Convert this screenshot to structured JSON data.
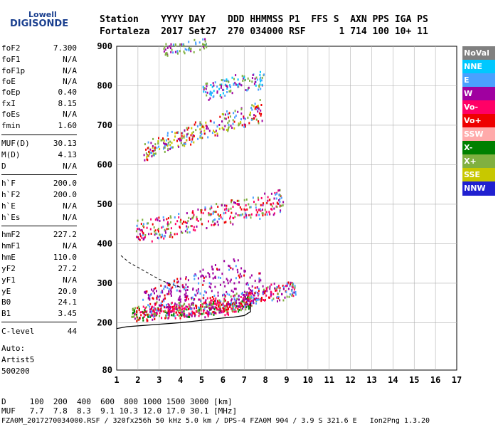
{
  "logo": {
    "line1": "Lowell",
    "line2": "DIGISONDE"
  },
  "header": {
    "row1": "Station    YYYY DAY    DDD HHMMSS P1  FFS S  AXN PPS IGA PS",
    "row2": "Fortaleza  2017 Set27  270 034000 RSF      1 714 100 10+ 11"
  },
  "params": [
    {
      "label": "foF2",
      "value": "7.300"
    },
    {
      "label": "foF1",
      "value": "N/A"
    },
    {
      "label": "foF1p",
      "value": "N/A"
    },
    {
      "label": "foE",
      "value": "N/A"
    },
    {
      "label": "foEp",
      "value": "0.40"
    },
    {
      "label": "fxI",
      "value": "8.15"
    },
    {
      "label": "foEs",
      "value": "N/A"
    },
    {
      "label": "fmin",
      "value": "1.60"
    },
    {
      "label": "MUF(D)",
      "value": "30.13"
    },
    {
      "label": "M(D)",
      "value": "4.13"
    },
    {
      "label": "D",
      "value": "N/A"
    },
    {
      "label": "h`F",
      "value": "200.0"
    },
    {
      "label": "h`F2",
      "value": "200.0"
    },
    {
      "label": "h`E",
      "value": "N/A"
    },
    {
      "label": "h`Es",
      "value": "N/A"
    },
    {
      "label": "hmF2",
      "value": "227.2"
    },
    {
      "label": "hmF1",
      "value": "N/A"
    },
    {
      "label": "hmE",
      "value": "110.0"
    },
    {
      "label": "yF2",
      "value": "27.2"
    },
    {
      "label": "yF1",
      "value": "N/A"
    },
    {
      "label": "yE",
      "value": "20.0"
    },
    {
      "label": "B0",
      "value": "24.1"
    },
    {
      "label": "B1",
      "value": "3.45"
    },
    {
      "label": "C-level",
      "value": "44"
    }
  ],
  "extra": {
    "auto": "Auto:",
    "artist": "Artist5",
    "version": "500200"
  },
  "legend": [
    {
      "label": "NoVal",
      "color": "#808080"
    },
    {
      "label": "NNE",
      "color": "#00c8ff"
    },
    {
      "label": "E",
      "color": "#4aa0ff"
    },
    {
      "label": "W",
      "color": "#a000a0"
    },
    {
      "label": "Vo-",
      "color": "#ff0066"
    },
    {
      "label": "Vo+",
      "color": "#ee0000"
    },
    {
      "label": "SSW",
      "color": "#ffaaaa"
    },
    {
      "label": "X-",
      "color": "#008000"
    },
    {
      "label": "X+",
      "color": "#80b040"
    },
    {
      "label": "SSE",
      "color": "#c8c800"
    },
    {
      "label": "NNW",
      "color": "#2020d0"
    }
  ],
  "footer": {
    "d_row": "D     100  200  400  600  800 1000 1500 3000 [km]",
    "muf_row": "MUF   7.7  7.8  8.3  9.1 10.3 12.0 17.0 30.1 [MHz]",
    "file_row": "FZA0M_2017270034000.RSF / 320fx256h 50 kHz 5.0 km / DPS-4 FZA0M 904 / 3.9 S 321.6 E   Ion2Png 1.3.20"
  },
  "chart_data": {
    "type": "scatter",
    "title": "",
    "xlabel": "",
    "ylabel": "",
    "xlim": [
      1,
      17
    ],
    "ylim": [
      80,
      900
    ],
    "x_ticks": [
      1,
      2,
      3,
      4,
      5,
      6,
      7,
      8,
      9,
      10,
      11,
      12,
      13,
      14,
      15,
      16,
      17
    ],
    "y_ticks": [
      80,
      200,
      300,
      400,
      500,
      600,
      700,
      800,
      900
    ],
    "grid": true,
    "echo_traces": [
      {
        "name": "O-trace (1st hop)",
        "points": [
          [
            1.7,
            208
          ],
          [
            2.0,
            210
          ],
          [
            2.5,
            212
          ],
          [
            3.0,
            214
          ],
          [
            3.5,
            216
          ],
          [
            4.0,
            218
          ],
          [
            4.5,
            220
          ],
          [
            5.0,
            222
          ],
          [
            5.5,
            224
          ],
          [
            6.0,
            226
          ],
          [
            6.5,
            230
          ],
          [
            7.0,
            236
          ],
          [
            7.3,
            245
          ]
        ]
      },
      {
        "name": "X-trace (1st hop)",
        "points": [
          [
            2.4,
            212
          ],
          [
            3.0,
            215
          ],
          [
            3.5,
            218
          ],
          [
            4.0,
            220
          ],
          [
            4.5,
            224
          ],
          [
            5.0,
            228
          ],
          [
            5.5,
            230
          ],
          [
            6.0,
            234
          ],
          [
            6.5,
            238
          ],
          [
            7.0,
            244
          ],
          [
            7.5,
            252
          ],
          [
            8.0,
            258
          ],
          [
            8.5,
            262
          ],
          [
            9.0,
            268
          ],
          [
            9.4,
            272
          ]
        ]
      },
      {
        "name": "2nd hop",
        "points": [
          [
            1.9,
            410
          ],
          [
            2.5,
            414
          ],
          [
            3.0,
            418
          ],
          [
            3.5,
            422
          ],
          [
            4.0,
            428
          ],
          [
            4.5,
            434
          ],
          [
            5.0,
            440
          ],
          [
            5.5,
            446
          ],
          [
            6.0,
            452
          ],
          [
            6.5,
            458
          ],
          [
            7.0,
            464
          ],
          [
            7.5,
            470
          ],
          [
            8.0,
            476
          ],
          [
            8.5,
            484
          ],
          [
            8.8,
            490
          ]
        ]
      },
      {
        "name": "3rd hop",
        "points": [
          [
            2.2,
            610
          ],
          [
            2.5,
            618
          ],
          [
            3.0,
            628
          ],
          [
            3.5,
            640
          ],
          [
            4.0,
            650
          ],
          [
            4.5,
            660
          ],
          [
            5.0,
            668
          ],
          [
            5.5,
            676
          ],
          [
            6.0,
            684
          ],
          [
            6.5,
            692
          ],
          [
            7.0,
            700
          ],
          [
            7.5,
            710
          ],
          [
            7.8,
            716
          ]
        ]
      },
      {
        "name": "4th hop",
        "points": [
          [
            5.0,
            765
          ],
          [
            5.5,
            772
          ],
          [
            6.0,
            780
          ],
          [
            6.5,
            786
          ],
          [
            7.0,
            792
          ],
          [
            7.5,
            798
          ],
          [
            7.9,
            802
          ]
        ]
      },
      {
        "name": "5th hop",
        "points": [
          [
            3.2,
            880
          ],
          [
            3.5,
            885
          ],
          [
            4.0,
            888
          ],
          [
            4.5,
            892
          ],
          [
            5.0,
            896
          ],
          [
            5.2,
            898
          ]
        ]
      }
    ],
    "profile_line": [
      [
        1.0,
        185
      ],
      [
        1.5,
        190
      ],
      [
        2.0,
        192
      ],
      [
        3.0,
        196
      ],
      [
        4.0,
        200
      ],
      [
        5.0,
        206
      ],
      [
        6.0,
        212
      ],
      [
        6.5,
        214
      ],
      [
        7.0,
        218
      ],
      [
        7.3,
        228
      ],
      [
        7.3,
        250
      ]
    ],
    "dashed_line": [
      [
        1.2,
        370
      ],
      [
        1.6,
        352
      ],
      [
        2.0,
        340
      ],
      [
        2.5,
        325
      ],
      [
        3.0,
        310
      ],
      [
        3.5,
        298
      ],
      [
        4.0,
        290
      ]
    ]
  }
}
